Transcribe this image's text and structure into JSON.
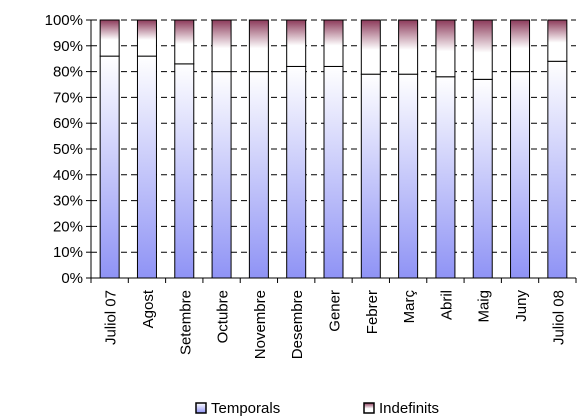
{
  "chart_data": {
    "type": "bar",
    "stacked": true,
    "percent": true,
    "categories": [
      "Juliol 07",
      "Agost",
      "Setembre",
      "Octubre",
      "Novembre",
      "Desembre",
      "Gener",
      "Febrer",
      "Març",
      "Abril",
      "Maig",
      "Juny",
      "Juliol 08"
    ],
    "series": [
      {
        "name": "Temporals",
        "values": [
          86,
          86,
          83,
          80,
          80,
          82,
          82,
          79,
          79,
          78,
          77,
          80,
          84
        ],
        "color": "#8f93f5"
      },
      {
        "name": "Indefinits",
        "values": [
          14,
          14,
          17,
          20,
          20,
          18,
          18,
          21,
          21,
          22,
          23,
          20,
          16
        ],
        "color": "#8c3a5a"
      }
    ],
    "ylim": [
      0,
      100
    ],
    "yticks": [
      "0%",
      "10%",
      "20%",
      "30%",
      "40%",
      "50%",
      "60%",
      "70%",
      "80%",
      "90%",
      "100%"
    ],
    "grid": "horizontal dashed",
    "legend": "bottom",
    "title": "",
    "xlabel": "",
    "ylabel": ""
  }
}
